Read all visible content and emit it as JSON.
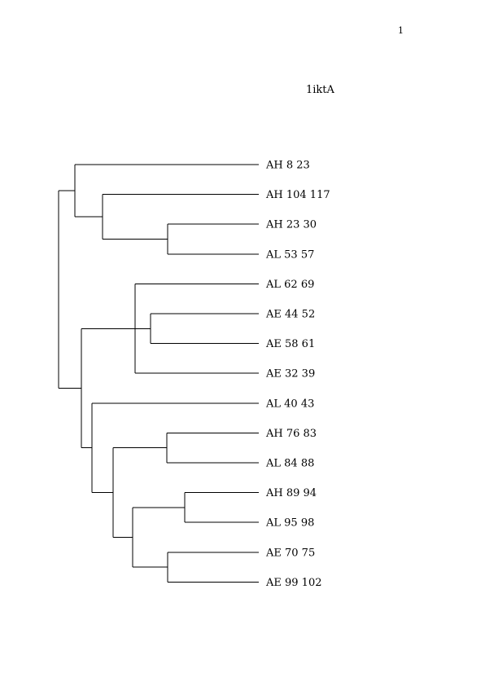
{
  "page_number": "1",
  "title": "1iktA",
  "leaves": [
    "AH 8 23",
    "AH 104 117",
    "AH 23 30",
    "AL 53 57",
    "AL 62 69",
    "AE 44 52",
    "AE 58 61",
    "AE 32 39",
    "AL 40 43",
    "AH 76 83",
    "AL 84 88",
    "AH 89 94",
    "AL 95 98",
    "AE 70 75",
    "AE 99 102"
  ],
  "tree": {
    "children": [
      {
        "children": [
          0,
          {
            "children": [
              1,
              {
                "children": [
                  2,
                  3
                ]
              }
            ]
          }
        ]
      },
      {
        "children": [
          {
            "children": [
              4,
              {
                "children": [
                  5,
                  6
                ]
              },
              7
            ]
          },
          {
            "children": [
              8,
              {
                "children": [
                  {
                    "children": [
                      9,
                      10
                    ]
                  },
                  {
                    "children": [
                      {
                        "children": [
                          11,
                          12
                        ]
                      },
                      {
                        "children": [
                          13,
                          14
                        ]
                      }
                    ]
                  }
                ]
              }
            ]
          }
        ]
      }
    ]
  }
}
